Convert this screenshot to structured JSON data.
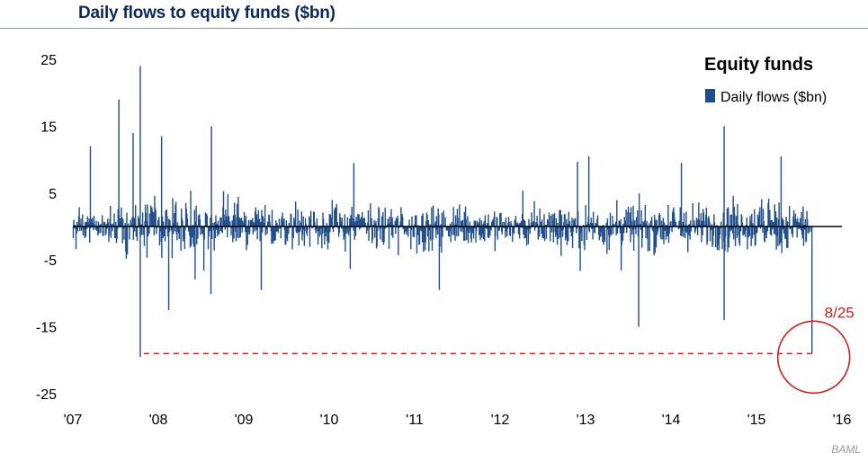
{
  "title": "Daily flows to equity funds ($bn)",
  "source": "BAML",
  "colors": {
    "series": "#1f4e8c",
    "zero_line": "#000000",
    "annotation": "#d21f1f",
    "title": "#0b2a5b"
  },
  "chart_data": {
    "type": "bar",
    "title": "Daily flows to equity funds ($bn)",
    "legend": {
      "title": "Equity funds",
      "position": "top-right"
    },
    "ylim": [
      -25,
      25
    ],
    "y_ticks": [
      25,
      15,
      5,
      -5,
      -15,
      -25
    ],
    "y_tick_labels": [
      "25",
      "15",
      "5",
      "-5",
      "-15",
      "-25"
    ],
    "x_range": [
      2007.0,
      2016.0
    ],
    "x_ticks": [
      2007,
      2008,
      2009,
      2010,
      2011,
      2012,
      2013,
      2014,
      2015,
      2016
    ],
    "x_tick_labels": [
      "'07",
      "'08",
      "'09",
      "'10",
      "'11",
      "'12",
      "'13",
      "'14",
      "'15",
      "'16"
    ],
    "grid": false,
    "series": [
      {
        "name": "Daily flows ($bn)",
        "notable_points": [
          {
            "x": "2007-03",
            "value": 12
          },
          {
            "x": "2007-07",
            "value": 19
          },
          {
            "x": "2007-10",
            "value": 24
          },
          {
            "x": "2007-10",
            "value": -19.5
          },
          {
            "x": "2007-09",
            "value": 14
          },
          {
            "x": "2008-01",
            "value": 13.5
          },
          {
            "x": "2008-02",
            "value": -12.5
          },
          {
            "x": "2008-08",
            "value": 15
          },
          {
            "x": "2009-03",
            "value": -9.5
          },
          {
            "x": "2010-04",
            "value": 9.5
          },
          {
            "x": "2011-04",
            "value": -9.5
          },
          {
            "x": "2013-01",
            "value": 10.5
          },
          {
            "x": "2013-08",
            "value": -15
          },
          {
            "x": "2014-02",
            "value": 9.5
          },
          {
            "x": "2014-08",
            "value": 15
          },
          {
            "x": "2014-08",
            "value": -14
          },
          {
            "x": "2015-04",
            "value": 10.5
          },
          {
            "x": "2015-08-25",
            "value": -19
          }
        ]
      }
    ],
    "annotations": [
      {
        "label": "8/25",
        "x": "2015-08-25",
        "value": -19,
        "style": "dashed reference line from 2007-10 to 2015-08-25, circle around last point"
      }
    ]
  }
}
